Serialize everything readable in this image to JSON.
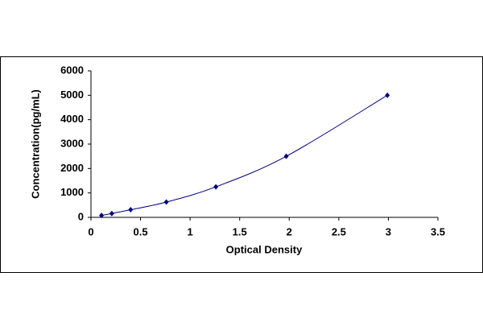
{
  "chart_data": {
    "type": "scatter",
    "x_label": "Optical Density",
    "y_label": "Concentration(pg/mL)",
    "series": [
      {
        "color": "#000080",
        "x": [
          0.106,
          0.21,
          0.4,
          0.76,
          1.26,
          1.97,
          2.99
        ],
        "values": [
          78,
          156,
          312,
          625,
          1250,
          2500,
          5000
        ]
      }
    ],
    "smooth_line": true,
    "xlim": [
      0,
      3.5
    ],
    "xticks": [
      0,
      0.5,
      1,
      1.5,
      2,
      2.5,
      3,
      3.5
    ],
    "ylim": [
      0,
      6000
    ],
    "yticks": [
      0,
      1000,
      2000,
      3000,
      4000,
      5000,
      6000
    ],
    "grid": false
  }
}
